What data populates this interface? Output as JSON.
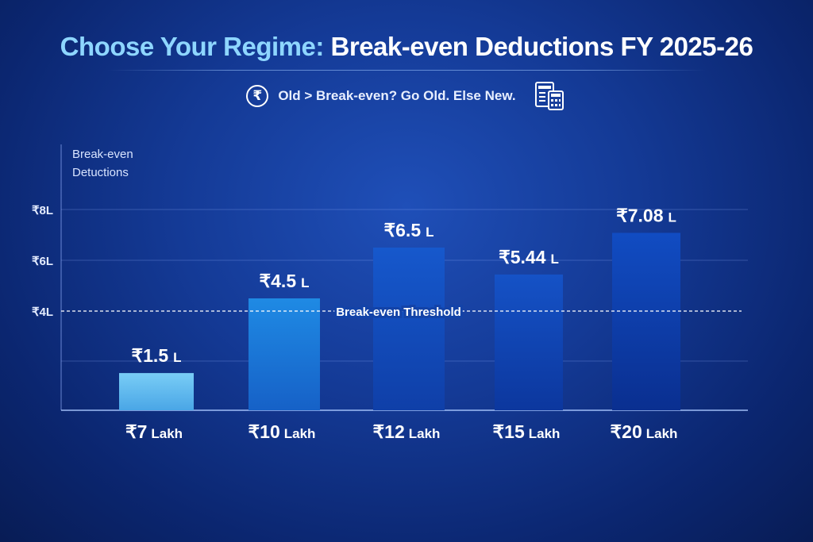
{
  "title_highlight": "Choose Your Regime:",
  "title_rest": "Break-even Deductions FY 2025-26",
  "subtitle": "Old > Break-even? Go Old. Else New.",
  "rupee_symbol": "₹",
  "icons": {
    "rupee": "rupee-circle-icon",
    "document": "document-calculator-icon"
  },
  "colors": {
    "title_highlight": "#8ed6ff",
    "bar_light": "#6cc4f2",
    "bar_dark": "#0b2f9a"
  },
  "chart_data": {
    "type": "bar",
    "ylabel_line1": "Break-even",
    "ylabel_line2": "Detuctions",
    "categories": [
      "₹7",
      "₹10",
      "₹12",
      "₹15",
      "₹20"
    ],
    "category_unit": "Lakh",
    "values": [
      1.5,
      4.5,
      6.5,
      5.44,
      7.08
    ],
    "value_labels": [
      "₹1.5",
      "₹4.5",
      "₹6.5",
      "₹5.44",
      "₹7.08"
    ],
    "value_unit": "L",
    "yticks": [
      {
        "value": 4,
        "label": "₹4L"
      },
      {
        "value": 6,
        "label": "₹6L"
      },
      {
        "value": 8,
        "label": "₹8L"
      }
    ],
    "gridlines": [
      2,
      4,
      6,
      8
    ],
    "ylim": [
      0,
      8.5
    ],
    "threshold": {
      "value": 4,
      "label": "Break-even Threshold"
    },
    "grid": true
  }
}
